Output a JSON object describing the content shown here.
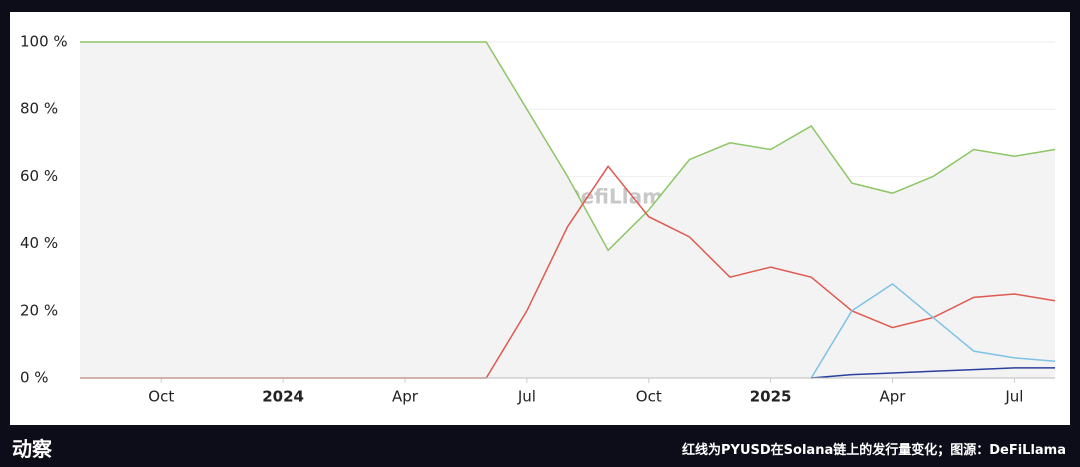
{
  "chart_data": {
    "type": "line",
    "x": [
      "2023-08",
      "2023-09",
      "2023-10",
      "2023-11",
      "2023-12",
      "2024-01",
      "2024-02",
      "2024-03",
      "2024-04",
      "2024-05",
      "2024-06",
      "2024-07",
      "2024-08",
      "2024-09",
      "2024-10",
      "2024-11",
      "2024-12",
      "2025-01",
      "2025-02",
      "2025-03",
      "2025-04",
      "2025-05",
      "2025-06",
      "2025-07",
      "2025-08"
    ],
    "series": [
      {
        "color": "#8cc665",
        "values": [
          100,
          100,
          100,
          100,
          100,
          100,
          100,
          100,
          100,
          100,
          100,
          80,
          60,
          38,
          50,
          65,
          70,
          68,
          75,
          58,
          55,
          60,
          68,
          66,
          68
        ]
      },
      {
        "color": "#e05a4f",
        "values": [
          0,
          0,
          0,
          0,
          0,
          0,
          0,
          0,
          0,
          0,
          0,
          20,
          45,
          63,
          48,
          42,
          30,
          33,
          30,
          20,
          15,
          18,
          24,
          25,
          23
        ]
      },
      {
        "color": "#7ec3e6",
        "values": [
          null,
          null,
          null,
          null,
          null,
          null,
          null,
          null,
          null,
          null,
          null,
          null,
          null,
          null,
          null,
          null,
          null,
          null,
          0,
          20,
          28,
          18,
          8,
          6,
          5
        ]
      },
      {
        "color": "#2b3f9e",
        "values": [
          null,
          null,
          null,
          null,
          null,
          null,
          null,
          null,
          null,
          null,
          null,
          null,
          null,
          null,
          null,
          null,
          null,
          null,
          0,
          1,
          1.5,
          2,
          2.5,
          3,
          3
        ]
      }
    ],
    "xlim": [
      "2023-08",
      "2025-08"
    ],
    "xticks": [
      {
        "value": "2023-10",
        "label": "Oct"
      },
      {
        "value": "2024-01",
        "label": "2024"
      },
      {
        "value": "2024-04",
        "label": "Apr"
      },
      {
        "value": "2024-07",
        "label": "Jul"
      },
      {
        "value": "2024-10",
        "label": "Oct"
      },
      {
        "value": "2025-01",
        "label": "2025"
      },
      {
        "value": "2025-04",
        "label": "Apr"
      },
      {
        "value": "2025-07",
        "label": "Jul"
      }
    ],
    "ylim": [
      0,
      100
    ],
    "yticks": [
      {
        "value": 0,
        "label": "0 %"
      },
      {
        "value": 20,
        "label": "20 %"
      },
      {
        "value": 40,
        "label": "40 %"
      },
      {
        "value": 60,
        "label": "60 %"
      },
      {
        "value": 80,
        "label": "80 %"
      },
      {
        "value": 100,
        "label": "100 %"
      }
    ],
    "grid": true,
    "watermark": "DefiLlama"
  },
  "footer": {
    "brand": "动察",
    "caption": "红线为PYUSD在Solana链上的发行量变化；图源：DeFiLlama"
  }
}
